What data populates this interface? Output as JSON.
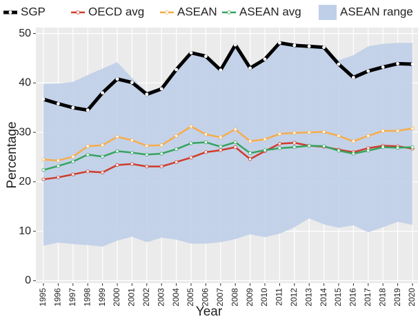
{
  "chart_data": {
    "type": "line",
    "x_label": "Year",
    "y_label": "Percentage",
    "categories": [
      "1995",
      "1996",
      "1997",
      "1998",
      "1999",
      "2000",
      "2001",
      "2002",
      "2003",
      "2004",
      "2005",
      "2006",
      "2007",
      "2008",
      "2009",
      "2010",
      "2011",
      "2012",
      "2013",
      "2014",
      "2015",
      "2016",
      "2017",
      "2018",
      "2019",
      "2020"
    ],
    "ylim": [
      -0.5,
      51.2
    ],
    "yticks": [
      0,
      10,
      20,
      30,
      40,
      50
    ],
    "grid": true,
    "legend": "top",
    "band": {
      "name": "ASEAN range",
      "color": "#bfcfe8",
      "upper": [
        39.8,
        39.9,
        40.2,
        41.6,
        42.9,
        44.2,
        41.0,
        38.3,
        39.0,
        42.6,
        46.1,
        45.4,
        42.6,
        47.7,
        43.0,
        44.8,
        48.1,
        47.6,
        47.4,
        47.2,
        44.6,
        45.6,
        47.4,
        47.9,
        48.1,
        48.1
      ],
      "lower": [
        7.1,
        7.7,
        7.4,
        7.2,
        6.9,
        8.1,
        8.9,
        7.8,
        8.7,
        8.3,
        7.5,
        7.5,
        7.8,
        8.4,
        9.4,
        8.8,
        9.5,
        10.8,
        12.6,
        11.4,
        10.7,
        11.2,
        9.8,
        10.8,
        11.9,
        11.3
      ]
    },
    "series": [
      {
        "name": "SGP",
        "color": "#000000",
        "values": [
          36.7,
          35.8,
          35.0,
          34.5,
          38.0,
          40.8,
          40.1,
          37.7,
          38.8,
          42.7,
          46.1,
          45.4,
          42.6,
          47.7,
          43.0,
          44.8,
          48.1,
          47.6,
          47.4,
          47.2,
          43.8,
          41.1,
          42.4,
          43.2,
          43.9,
          43.8
        ]
      },
      {
        "name": "OECD avg",
        "color": "#d03a2a",
        "values": [
          20.5,
          20.9,
          21.5,
          22.1,
          21.9,
          23.4,
          23.6,
          23.1,
          23.1,
          24.0,
          24.9,
          26.0,
          26.4,
          27.0,
          24.6,
          26.2,
          27.7,
          27.9,
          27.3,
          27.1,
          26.5,
          26.0,
          26.8,
          27.3,
          27.2,
          26.7
        ]
      },
      {
        "name": "ASEAN",
        "color": "#f7ac4a",
        "values": [
          24.5,
          24.3,
          25.1,
          27.2,
          27.4,
          29.1,
          28.4,
          27.3,
          27.4,
          29.3,
          31.2,
          29.6,
          29.0,
          30.6,
          28.2,
          28.6,
          29.7,
          29.9,
          30.0,
          30.1,
          29.3,
          28.2,
          29.3,
          30.3,
          30.3,
          30.8
        ]
      },
      {
        "name": "ASEAN avg",
        "color": "#35a35e",
        "values": [
          22.4,
          23.2,
          24.1,
          25.5,
          25.1,
          26.2,
          25.9,
          25.5,
          25.7,
          26.6,
          27.8,
          28.0,
          27.1,
          28.0,
          25.8,
          26.4,
          26.8,
          27.0,
          27.3,
          27.2,
          26.3,
          25.7,
          26.3,
          27.0,
          26.9,
          27.0
        ]
      }
    ]
  }
}
